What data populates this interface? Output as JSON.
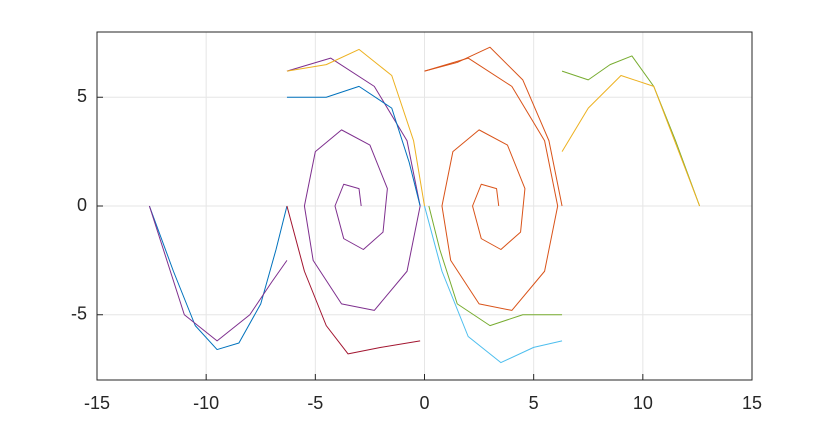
{
  "chart_data": {
    "type": "line",
    "grid": true,
    "xlim": [
      -15,
      15
    ],
    "xticks": [
      -15,
      -10,
      -5,
      0,
      5,
      10,
      15
    ],
    "ylim": [
      -8,
      8
    ],
    "yticks": [
      -5,
      0,
      5
    ],
    "series": [
      {
        "color": "#0072bd",
        "x": [
          -12.6,
          -11.5,
          -10.5,
          -9.5,
          -8.5,
          -7.5,
          -6.8,
          -6.3
        ],
        "values": [
          0,
          -3,
          -5.5,
          -6.6,
          -6.3,
          -4.5,
          -2,
          0
        ]
      },
      {
        "color": "#77ac30",
        "x": [
          6.3,
          7.5,
          8.5,
          9.5,
          10.5,
          11.5,
          12.6
        ],
        "values": [
          6.2,
          5.8,
          6.5,
          6.9,
          5.5,
          3,
          0
        ]
      },
      {
        "color": "#d95319",
        "x": [
          0,
          2,
          4,
          5.5,
          6.1,
          5.5,
          4,
          2.5,
          1.2,
          0.8,
          1.3,
          2.5,
          3.8,
          4.6,
          4.4,
          3.5,
          2.6,
          2.2,
          2.6,
          3.3,
          3.4
        ],
        "values": [
          6.2,
          6.8,
          5.5,
          3,
          0,
          -3,
          -4.8,
          -4.5,
          -2.5,
          0,
          2.5,
          3.5,
          2.8,
          0.8,
          -1.2,
          -2,
          -1.5,
          0,
          1,
          0.8,
          0
        ]
      },
      {
        "color": "#7e2f8e",
        "x": [
          -6.3,
          -4.3,
          -2.3,
          -0.8,
          -0.2,
          -0.8,
          -2.3,
          -3.8,
          -5.1,
          -5.5,
          -5,
          -3.8,
          -2.5,
          -1.7,
          -1.9,
          -2.8,
          -3.7,
          -4.1,
          -3.7,
          -3,
          -2.9
        ],
        "values": [
          6.2,
          6.8,
          5.5,
          3,
          0,
          -3,
          -4.8,
          -4.5,
          -2.5,
          0,
          2.5,
          3.5,
          2.8,
          0.8,
          -1.2,
          -2,
          -1.5,
          0,
          1,
          0.8,
          0
        ]
      },
      {
        "color": "#edb120",
        "x": [
          -6.3,
          -4.5,
          -3,
          -1.5,
          -0.5,
          0
        ],
        "values": [
          6.2,
          6.5,
          7.2,
          6,
          3,
          0
        ]
      },
      {
        "color": "#4dbeee",
        "x": [
          0,
          0.8,
          2,
          3.5,
          5,
          6.3
        ],
        "values": [
          0,
          -3,
          -6,
          -7.2,
          -6.5,
          -6.2
        ]
      },
      {
        "color": "#a2142f",
        "x": [
          -6.3,
          -5.5,
          -4.5,
          -3.5,
          -2,
          -0.2
        ],
        "values": [
          0,
          -3,
          -5.5,
          -6.8,
          -6.5,
          -6.2
        ]
      },
      {
        "color": "#0072bd",
        "x": [
          -6.3,
          -4.5,
          -3,
          -1.5,
          -0.7,
          -0.2
        ],
        "values": [
          5,
          5,
          5.5,
          4.5,
          2,
          0
        ]
      },
      {
        "color": "#d95319",
        "x": [
          0,
          1.5,
          3,
          4.5,
          5.7,
          6.3
        ],
        "values": [
          6.2,
          6.6,
          7.3,
          5.8,
          3,
          0
        ]
      },
      {
        "color": "#77ac30",
        "x": [
          0.2,
          0.7,
          1.5,
          3,
          4.5,
          6.3
        ],
        "values": [
          0,
          -2,
          -4.5,
          -5.5,
          -5,
          -5
        ]
      },
      {
        "color": "#7e2f8e",
        "x": [
          -6.3,
          -7,
          -8,
          -9.5,
          -11,
          -12.6
        ],
        "values": [
          -2.5,
          -3.5,
          -5,
          -6.2,
          -5,
          0
        ]
      },
      {
        "color": "#edb120",
        "x": [
          6.3,
          7.5,
          9,
          10.5,
          12.6
        ],
        "values": [
          2.5,
          4.5,
          6,
          5.5,
          0
        ]
      }
    ]
  }
}
